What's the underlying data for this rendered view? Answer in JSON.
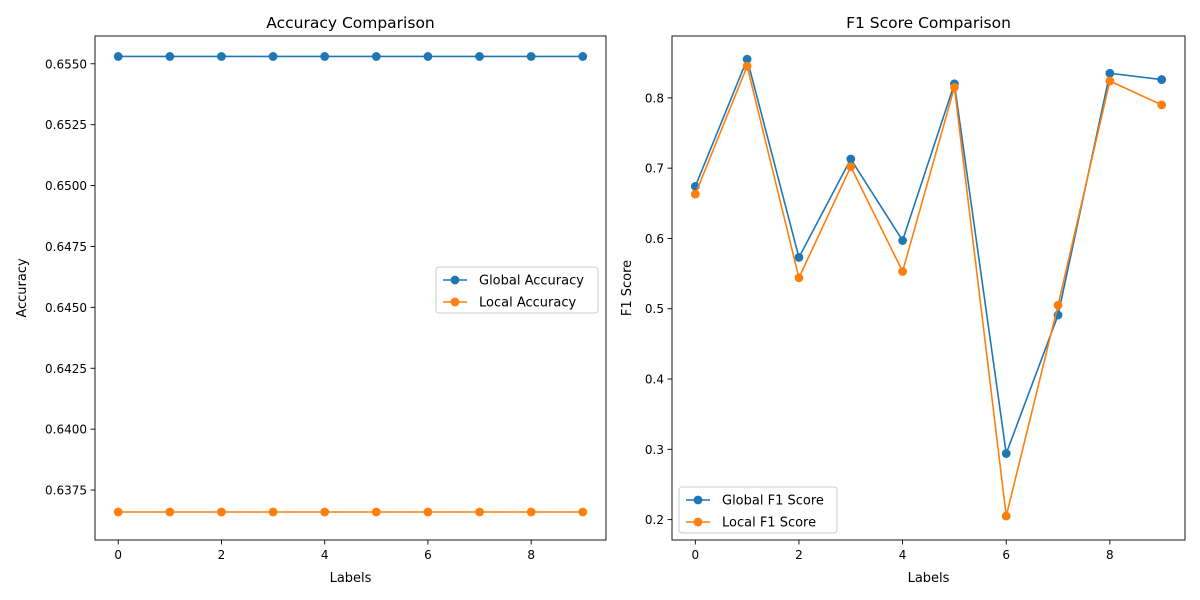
{
  "chart_data": [
    {
      "type": "line",
      "title": "Accuracy Comparison",
      "xlabel": "Labels",
      "ylabel": "Accuracy",
      "x": [
        0,
        1,
        2,
        3,
        4,
        5,
        6,
        7,
        8,
        9
      ],
      "xticks": [
        "0",
        "2",
        "4",
        "6",
        "8"
      ],
      "yticks": [
        "0.6375",
        "0.6400",
        "0.6425",
        "0.6450",
        "0.6475",
        "0.6500",
        "0.6525",
        "0.6550"
      ],
      "xlim": [
        -0.45,
        9.45
      ],
      "ylim": [
        0.63545,
        0.65614
      ],
      "legend_position": "center-right",
      "grid": false,
      "series": [
        {
          "name": "Global Accuracy",
          "color": "#1f77b4",
          "values": [
            0.6553,
            0.6553,
            0.6553,
            0.6553,
            0.6553,
            0.6553,
            0.6553,
            0.6553,
            0.6553,
            0.6553
          ]
        },
        {
          "name": "Local Accuracy",
          "color": "#ff7f0e",
          "values": [
            0.6366,
            0.6366,
            0.6366,
            0.6366,
            0.6366,
            0.6366,
            0.6366,
            0.6366,
            0.6366,
            0.6366
          ]
        }
      ]
    },
    {
      "type": "line",
      "title": "F1 Score Comparison",
      "xlabel": "Labels",
      "ylabel": "F1 Score",
      "x": [
        0,
        1,
        2,
        3,
        4,
        5,
        6,
        7,
        8,
        9
      ],
      "xticks": [
        "0",
        "2",
        "4",
        "6",
        "8"
      ],
      "yticks": [
        "0.2",
        "0.3",
        "0.4",
        "0.5",
        "0.6",
        "0.7",
        "0.8"
      ],
      "xlim": [
        -0.45,
        9.45
      ],
      "ylim": [
        0.171,
        0.888
      ],
      "legend_position": "lower-left",
      "grid": false,
      "series": [
        {
          "name": "Global F1 Score",
          "color": "#1f77b4",
          "values": [
            0.674,
            0.855,
            0.573,
            0.713,
            0.597,
            0.82,
            0.294,
            0.491,
            0.835,
            0.826
          ]
        },
        {
          "name": "Local F1 Score",
          "color": "#ff7f0e",
          "values": [
            0.663,
            0.845,
            0.544,
            0.702,
            0.553,
            0.815,
            0.205,
            0.505,
            0.824,
            0.79
          ]
        }
      ]
    }
  ]
}
